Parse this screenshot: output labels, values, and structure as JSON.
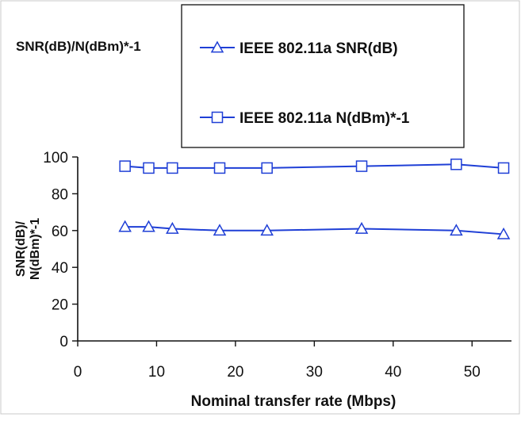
{
  "chart_data": {
    "type": "line",
    "title": "SNR(dB)/N(dBm)*-1",
    "xlabel": "Nominal transfer rate (Mbps)",
    "ylabel": "SNR(dB)/ N(dBm)*-1",
    "xlim": [
      0,
      55
    ],
    "ylim": [
      0,
      100
    ],
    "x_ticks": [
      "0",
      "10",
      "20",
      "30",
      "40",
      "50"
    ],
    "y_ticks": [
      "0",
      "20",
      "40",
      "60",
      "80",
      "100"
    ],
    "grid": false,
    "legend_position": "top",
    "x": [
      6,
      9,
      12,
      18,
      24,
      36,
      48,
      54
    ],
    "series": [
      {
        "name": "IEEE 802.11a SNR(dB)",
        "marker": "triangle",
        "color": "#1f3fd6",
        "values": [
          62,
          62,
          61,
          60,
          60,
          61,
          60,
          58
        ]
      },
      {
        "name": "IEEE 802.11a N(dBm)*-1",
        "marker": "square",
        "color": "#1f3fd6",
        "values": [
          95,
          94,
          94,
          94,
          94,
          95,
          96,
          94
        ]
      }
    ]
  }
}
